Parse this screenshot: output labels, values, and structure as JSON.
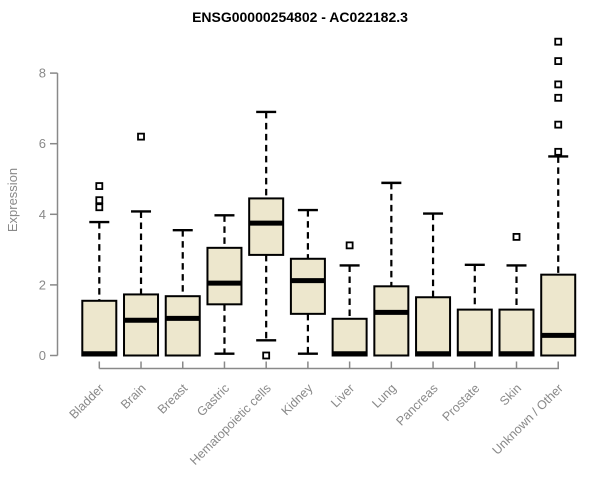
{
  "chart_data": {
    "type": "boxplot",
    "title": "ENSG00000254802 - AC022182.3",
    "ylabel": "Expression",
    "xlabel": "",
    "ylim": [
      0,
      8
    ],
    "yticks": [
      0,
      2,
      4,
      6,
      8
    ],
    "grid": "off",
    "legend": "none",
    "categories": [
      "Bladder",
      "Brain",
      "Breast",
      "Gastric",
      "Hematopoietic cells",
      "Kidney",
      "Liver",
      "Lung",
      "Pancreas",
      "Prostate",
      "Skin",
      "Unknown / Other"
    ],
    "series": [
      {
        "category": "Bladder",
        "lo": 0,
        "q1": 0,
        "med": 0.05,
        "q3": 1.55,
        "hi": 3.78,
        "outliers": [
          4.2,
          4.4,
          4.8
        ]
      },
      {
        "category": "Brain",
        "lo": 0,
        "q1": 0,
        "med": 1.0,
        "q3": 1.73,
        "hi": 4.08,
        "outliers": [
          6.2
        ]
      },
      {
        "category": "Breast",
        "lo": 0,
        "q1": 0,
        "med": 1.05,
        "q3": 1.68,
        "hi": 3.55,
        "outliers": []
      },
      {
        "category": "Gastric",
        "lo": 0.05,
        "q1": 1.45,
        "med": 2.05,
        "q3": 3.05,
        "hi": 3.97,
        "outliers": []
      },
      {
        "category": "Hematopoietic cells",
        "lo": 0.43,
        "q1": 2.85,
        "med": 3.75,
        "q3": 4.45,
        "hi": 6.9,
        "outliers": [
          0.0
        ]
      },
      {
        "category": "Kidney",
        "lo": 0.05,
        "q1": 1.18,
        "med": 2.12,
        "q3": 2.74,
        "hi": 4.12,
        "outliers": []
      },
      {
        "category": "Liver",
        "lo": 0,
        "q1": 0,
        "med": 0.05,
        "q3": 1.04,
        "hi": 2.55,
        "outliers": [
          3.12
        ]
      },
      {
        "category": "Lung",
        "lo": 0,
        "q1": 0,
        "med": 1.22,
        "q3": 1.96,
        "hi": 4.89,
        "outliers": []
      },
      {
        "category": "Pancreas",
        "lo": 0,
        "q1": 0,
        "med": 0.05,
        "q3": 1.65,
        "hi": 4.02,
        "outliers": []
      },
      {
        "category": "Prostate",
        "lo": 0,
        "q1": 0,
        "med": 0.05,
        "q3": 1.3,
        "hi": 2.57,
        "outliers": []
      },
      {
        "category": "Skin",
        "lo": 0,
        "q1": 0,
        "med": 0.05,
        "q3": 1.3,
        "hi": 2.55,
        "outliers": [
          3.36
        ]
      },
      {
        "category": "Unknown / Other",
        "lo": 0,
        "q1": 0,
        "med": 0.57,
        "q3": 2.29,
        "hi": 5.64,
        "outliers": [
          5.77,
          6.54,
          7.3,
          7.68,
          8.34,
          8.89
        ]
      }
    ],
    "colors": {
      "box_fill": "#EDE7CD",
      "box_border": "#000000",
      "median": "#000000",
      "whisker": "#000000",
      "axis": "#898989",
      "title": "#000000",
      "background": "#ffffff"
    }
  }
}
